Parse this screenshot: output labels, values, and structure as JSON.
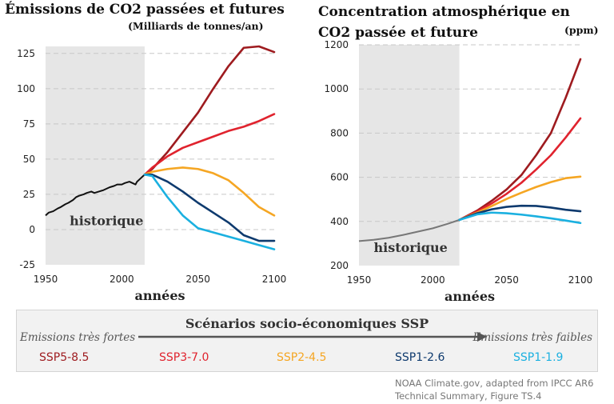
{
  "legend": {
    "title": "Scénarios socio-économiques SSP",
    "strong": "Emissions très fortes",
    "weak": "Emissions très faibles",
    "items": [
      {
        "label": "SSP5-8.5",
        "color": "#9e1b1f"
      },
      {
        "label": "SSP3-7.0",
        "color": "#e0232e"
      },
      {
        "label": "SSP2-4.5",
        "color": "#f5a623"
      },
      {
        "label": "SSP1-2.6",
        "color": "#0e3a6e"
      },
      {
        "label": "SSP1-1.9",
        "color": "#1ab0e0"
      }
    ]
  },
  "source": {
    "line1": "NOAA Climate.gov, adapted from IPCC AR6",
    "line2": "Technical Summary, Figure TS.4"
  },
  "chart_data": [
    {
      "type": "line",
      "title": "Émissions de CO2 passées et futures",
      "subtitle": "(Milliards de tonnes/an)",
      "xlabel": "années",
      "xlim": [
        1950,
        2100
      ],
      "ylim": [
        -25,
        130
      ],
      "xticks": [
        1950,
        2000,
        2050,
        2100
      ],
      "yticks": [
        -25,
        0,
        25,
        50,
        75,
        100,
        125
      ],
      "historical_region": {
        "from": 1950,
        "to": 2015,
        "label": "historique"
      },
      "historical": {
        "color": "#111111",
        "x": [
          1950,
          1952,
          1955,
          1958,
          1960,
          1963,
          1965,
          1968,
          1970,
          1972,
          1975,
          1977,
          1980,
          1982,
          1985,
          1988,
          1990,
          1992,
          1995,
          1997,
          2000,
          2002,
          2005,
          2007,
          2009,
          2010,
          2012,
          2015
        ],
        "y": [
          10,
          12,
          13,
          15,
          16,
          18,
          19,
          21,
          23,
          24,
          25,
          26,
          27,
          26,
          27,
          28,
          29,
          30,
          31,
          32,
          32,
          33,
          34,
          33,
          32,
          34,
          36,
          39
        ]
      },
      "series": [
        {
          "name": "SSP5-8.5",
          "color": "#9e1b1f",
          "x": [
            2015,
            2020,
            2030,
            2040,
            2050,
            2060,
            2070,
            2080,
            2090,
            2100
          ],
          "y": [
            39,
            43,
            55,
            69,
            83,
            100,
            116,
            129,
            130,
            126
          ]
        },
        {
          "name": "SSP3-7.0",
          "color": "#e0232e",
          "x": [
            2015,
            2020,
            2030,
            2040,
            2050,
            2060,
            2070,
            2080,
            2090,
            2100
          ],
          "y": [
            39,
            44,
            52,
            58,
            62,
            66,
            70,
            73,
            77,
            82
          ]
        },
        {
          "name": "SSP2-4.5",
          "color": "#f5a623",
          "x": [
            2015,
            2020,
            2030,
            2040,
            2050,
            2060,
            2070,
            2080,
            2090,
            2100
          ],
          "y": [
            39,
            41,
            43,
            44,
            43,
            40,
            35,
            26,
            16,
            10
          ]
        },
        {
          "name": "SSP1-2.6",
          "color": "#0e3a6e",
          "x": [
            2015,
            2020,
            2030,
            2040,
            2050,
            2060,
            2070,
            2080,
            2090,
            2100
          ],
          "y": [
            39,
            39,
            34,
            27,
            19,
            12,
            5,
            -4,
            -8,
            -8
          ]
        },
        {
          "name": "SSP1-1.9",
          "color": "#1ab0e0",
          "x": [
            2015,
            2020,
            2030,
            2040,
            2050,
            2060,
            2070,
            2080,
            2090,
            2100
          ],
          "y": [
            39,
            38,
            23,
            10,
            1,
            -2,
            -5,
            -8,
            -11,
            -14
          ]
        }
      ]
    },
    {
      "type": "line",
      "title": "Concentration atmosphérique en CO2 passée et future",
      "subtitle": "(ppm)",
      "xlabel": "années",
      "xlim": [
        1950,
        2100
      ],
      "ylim": [
        200,
        1200
      ],
      "xticks": [
        1950,
        2000,
        2050,
        2100
      ],
      "yticks": [
        200,
        400,
        600,
        800,
        1000,
        1200
      ],
      "historical_region": {
        "from": 1950,
        "to": 2018,
        "label": "historique"
      },
      "historical": {
        "color": "#777777",
        "x": [
          1950,
          1960,
          1970,
          1980,
          1990,
          2000,
          2010,
          2018
        ],
        "y": [
          311,
          317,
          326,
          339,
          354,
          369,
          389,
          407
        ]
      },
      "series": [
        {
          "name": "SSP5-8.5",
          "color": "#9e1b1f",
          "x": [
            2018,
            2030,
            2040,
            2050,
            2060,
            2070,
            2080,
            2090,
            2100
          ],
          "y": [
            407,
            449,
            494,
            545,
            610,
            700,
            800,
            960,
            1135
          ]
        },
        {
          "name": "SSP3-7.0",
          "color": "#e0232e",
          "x": [
            2018,
            2030,
            2040,
            2050,
            2060,
            2070,
            2080,
            2090,
            2100
          ],
          "y": [
            407,
            445,
            482,
            525,
            575,
            635,
            700,
            780,
            867
          ]
        },
        {
          "name": "SSP2-4.5",
          "color": "#f5a623",
          "x": [
            2018,
            2030,
            2040,
            2050,
            2060,
            2070,
            2080,
            2090,
            2100
          ],
          "y": [
            407,
            440,
            470,
            502,
            530,
            556,
            578,
            596,
            603
          ]
        },
        {
          "name": "SSP1-2.6",
          "color": "#0e3a6e",
          "x": [
            2018,
            2030,
            2040,
            2050,
            2060,
            2070,
            2080,
            2090,
            2100
          ],
          "y": [
            407,
            437,
            455,
            466,
            471,
            470,
            463,
            453,
            446
          ]
        },
        {
          "name": "SSP1-1.9",
          "color": "#1ab0e0",
          "x": [
            2018,
            2030,
            2040,
            2050,
            2060,
            2070,
            2080,
            2090,
            2100
          ],
          "y": [
            407,
            432,
            440,
            437,
            431,
            423,
            414,
            404,
            393
          ]
        }
      ]
    }
  ]
}
